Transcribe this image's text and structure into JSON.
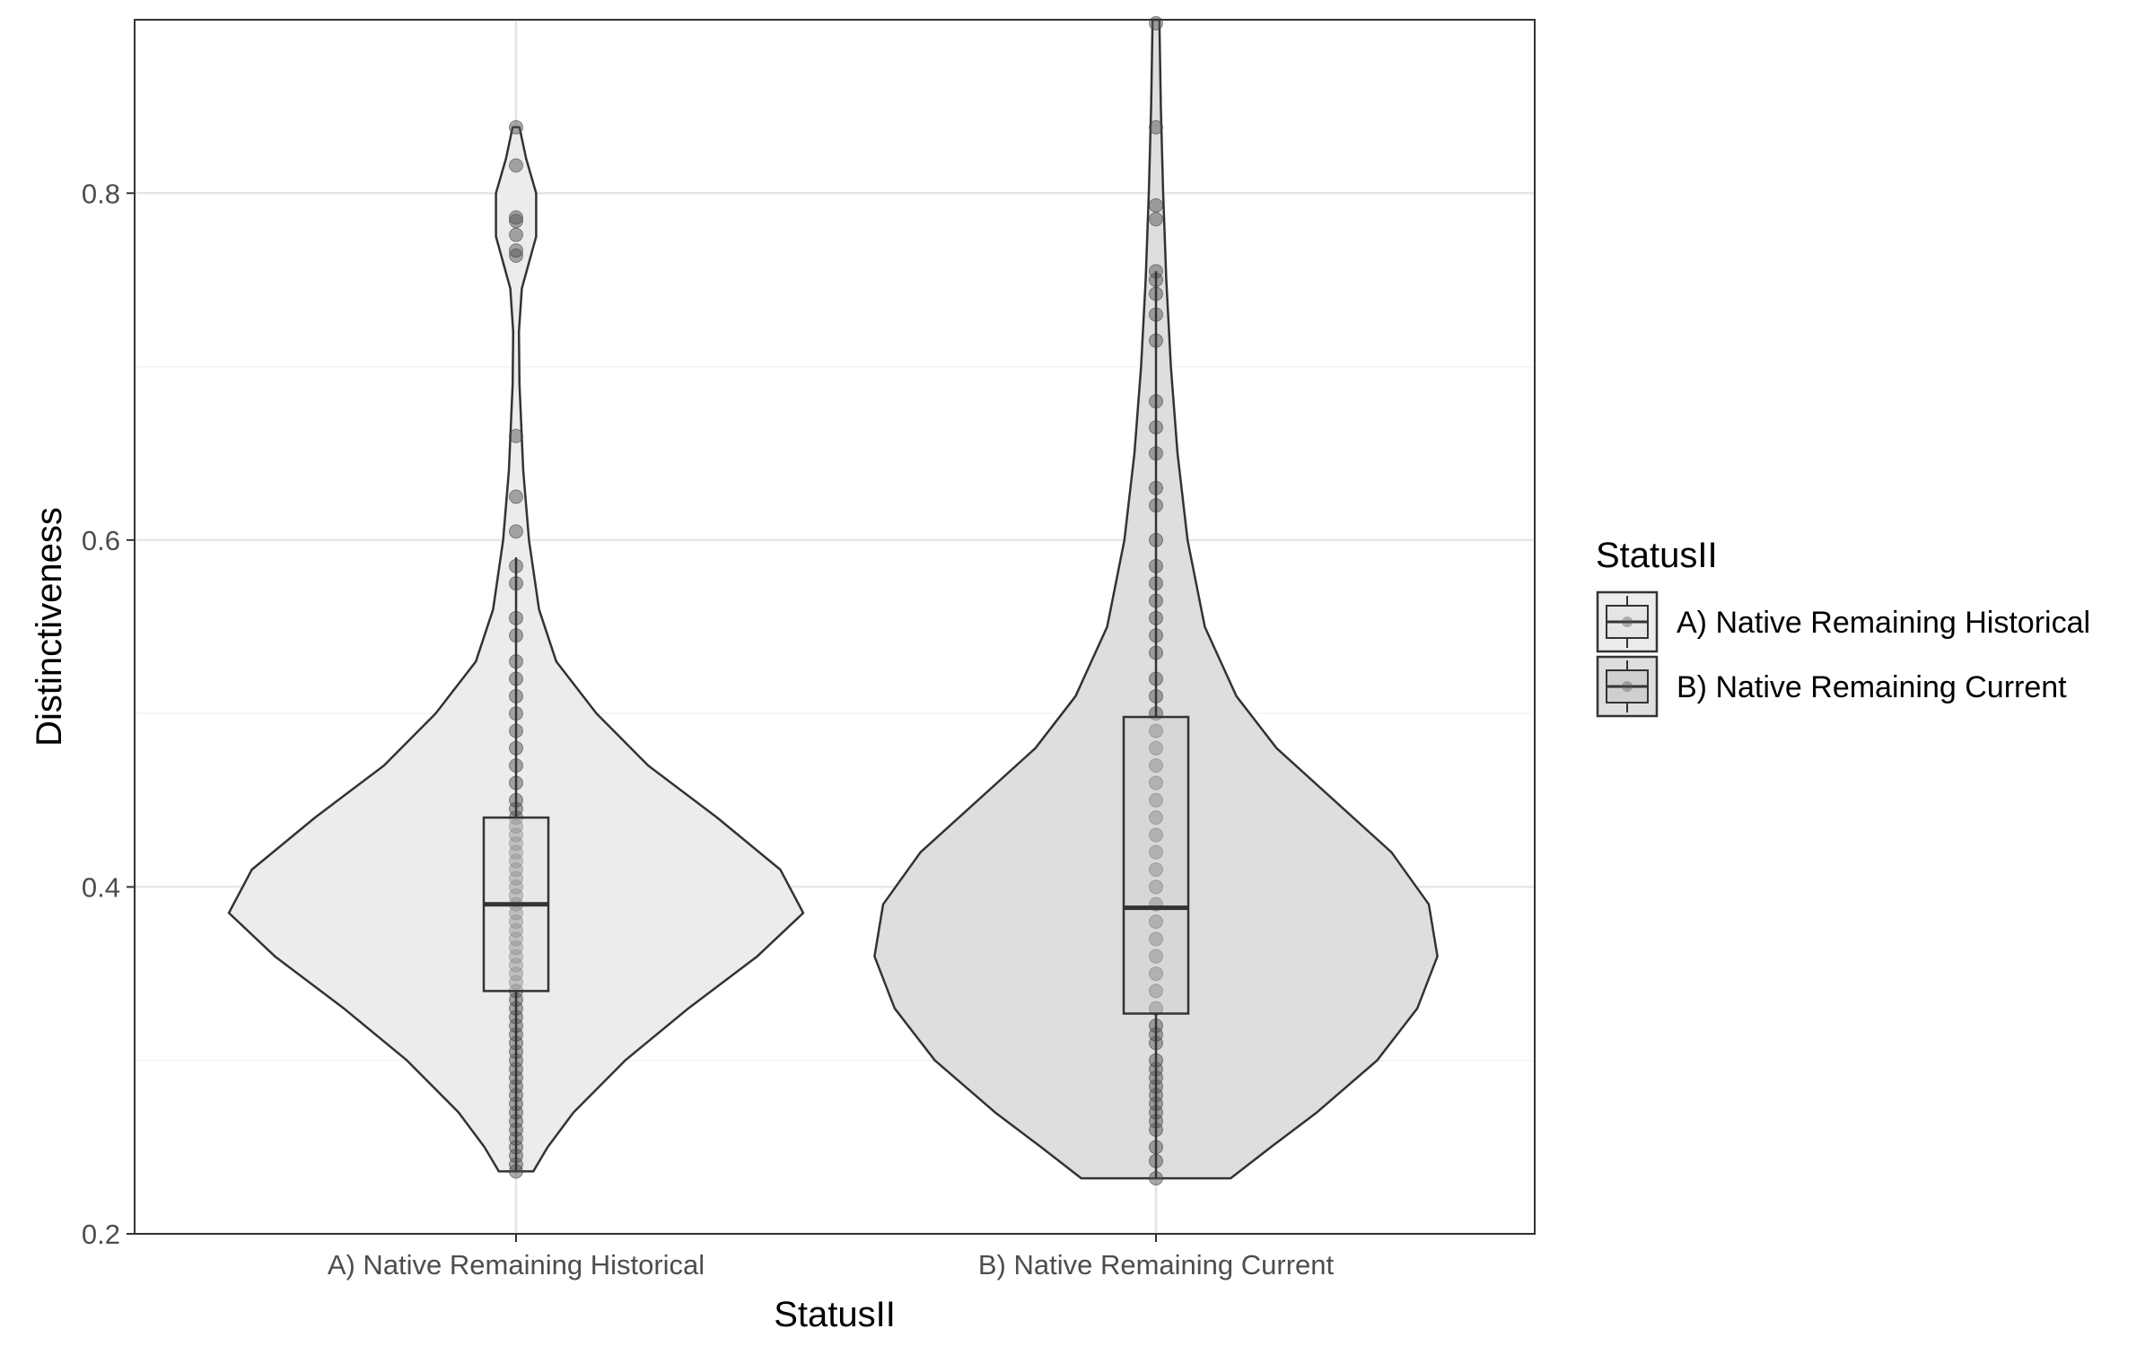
{
  "chart_data": {
    "type": "violin",
    "xlabel": "StatusII",
    "ylabel": "Distinctiveness",
    "ylim": [
      0.2,
      0.9
    ],
    "y_ticks": [
      0.2,
      0.4,
      0.6,
      0.8
    ],
    "y_tick_labels": [
      "0.2",
      "0.4",
      "0.6",
      "0.8"
    ],
    "grid": true,
    "legend": {
      "title": "StatusII",
      "position": "right",
      "entries": [
        "A) Native Remaining Historical",
        "B) Native Remaining Current"
      ]
    },
    "categories": [
      "A) Native Remaining Historical",
      "B) Native Remaining Current"
    ],
    "series": [
      {
        "name": "A) Native Remaining Historical",
        "fill": "#ececec",
        "box_fill": "#e5e5e5",
        "box": {
          "q1": 0.34,
          "median": 0.39,
          "q3": 0.44,
          "whisker_low": 0.236,
          "whisker_high": 0.59
        },
        "violin_profile": [
          [
            0.236,
            0.06
          ],
          [
            0.25,
            0.11
          ],
          [
            0.27,
            0.2
          ],
          [
            0.3,
            0.38
          ],
          [
            0.33,
            0.6
          ],
          [
            0.36,
            0.84
          ],
          [
            0.385,
            1.0
          ],
          [
            0.41,
            0.92
          ],
          [
            0.44,
            0.7
          ],
          [
            0.47,
            0.46
          ],
          [
            0.5,
            0.28
          ],
          [
            0.53,
            0.14
          ],
          [
            0.56,
            0.08
          ],
          [
            0.6,
            0.045
          ],
          [
            0.64,
            0.025
          ],
          [
            0.69,
            0.012
          ],
          [
            0.72,
            0.01
          ],
          [
            0.745,
            0.02
          ],
          [
            0.775,
            0.07
          ],
          [
            0.8,
            0.07
          ],
          [
            0.82,
            0.035
          ],
          [
            0.838,
            0.012
          ]
        ],
        "points": [
          0.236,
          0.24,
          0.245,
          0.25,
          0.255,
          0.26,
          0.265,
          0.27,
          0.275,
          0.28,
          0.285,
          0.29,
          0.295,
          0.3,
          0.305,
          0.31,
          0.315,
          0.32,
          0.325,
          0.33,
          0.335,
          0.34,
          0.345,
          0.35,
          0.355,
          0.36,
          0.365,
          0.37,
          0.375,
          0.38,
          0.385,
          0.39,
          0.395,
          0.4,
          0.405,
          0.41,
          0.415,
          0.42,
          0.425,
          0.43,
          0.435,
          0.44,
          0.445,
          0.45,
          0.46,
          0.47,
          0.48,
          0.49,
          0.5,
          0.51,
          0.52,
          0.53,
          0.545,
          0.555,
          0.575,
          0.585,
          0.605,
          0.625,
          0.66,
          0.764,
          0.767,
          0.776,
          0.784,
          0.786,
          0.816,
          0.838
        ]
      },
      {
        "name": "B) Native Remaining Current",
        "fill": "#dedede",
        "box_fill": "#cfcfcf",
        "box": {
          "q1": 0.327,
          "median": 0.388,
          "q3": 0.498,
          "whisker_low": 0.232,
          "whisker_high": 0.755
        },
        "violin_profile": [
          [
            0.232,
            0.26
          ],
          [
            0.25,
            0.4
          ],
          [
            0.27,
            0.56
          ],
          [
            0.3,
            0.77
          ],
          [
            0.33,
            0.91
          ],
          [
            0.36,
            0.98
          ],
          [
            0.39,
            0.95
          ],
          [
            0.42,
            0.82
          ],
          [
            0.45,
            0.62
          ],
          [
            0.48,
            0.42
          ],
          [
            0.51,
            0.28
          ],
          [
            0.55,
            0.17
          ],
          [
            0.6,
            0.11
          ],
          [
            0.65,
            0.075
          ],
          [
            0.7,
            0.052
          ],
          [
            0.75,
            0.036
          ],
          [
            0.8,
            0.025
          ],
          [
            0.85,
            0.017
          ],
          [
            0.9,
            0.012
          ]
        ],
        "points": [
          0.232,
          0.242,
          0.25,
          0.26,
          0.265,
          0.27,
          0.275,
          0.28,
          0.285,
          0.29,
          0.295,
          0.3,
          0.31,
          0.315,
          0.32,
          0.33,
          0.34,
          0.35,
          0.36,
          0.37,
          0.38,
          0.39,
          0.4,
          0.41,
          0.42,
          0.43,
          0.44,
          0.45,
          0.46,
          0.47,
          0.48,
          0.49,
          0.5,
          0.51,
          0.52,
          0.535,
          0.545,
          0.555,
          0.565,
          0.575,
          0.585,
          0.6,
          0.62,
          0.63,
          0.65,
          0.665,
          0.68,
          0.715,
          0.73,
          0.742,
          0.75,
          0.755,
          0.785,
          0.793,
          0.838,
          0.898
        ]
      }
    ]
  }
}
